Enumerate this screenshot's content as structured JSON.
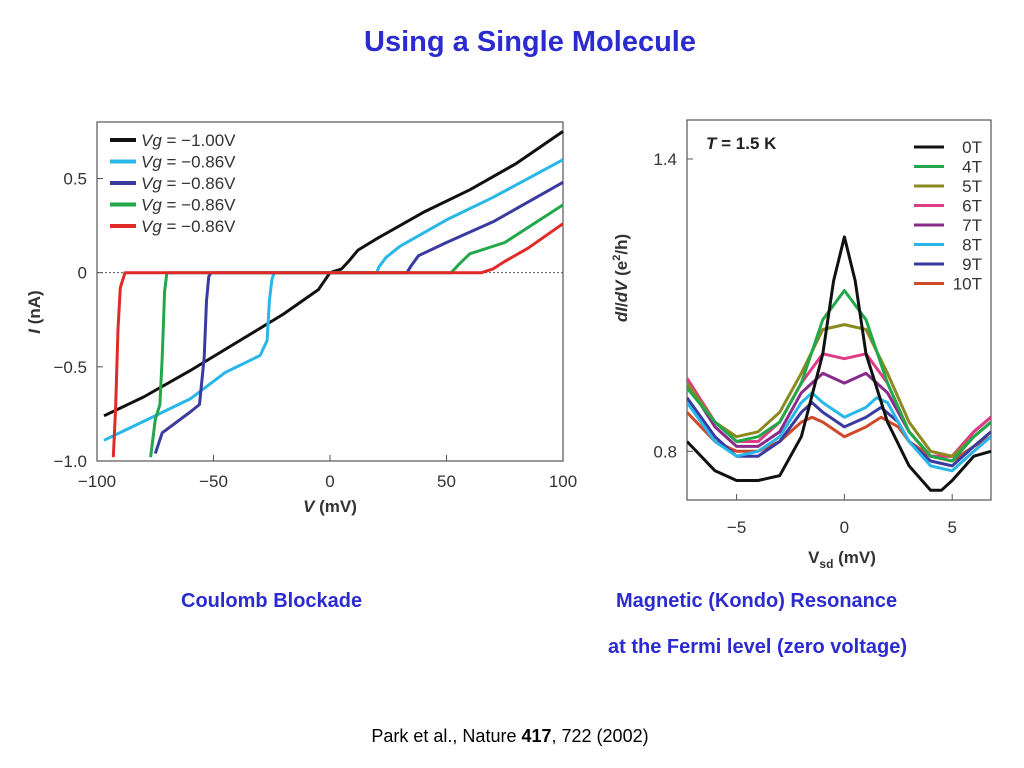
{
  "slide": {
    "title": "Using a Single Molecule",
    "caption_left": "Coulomb Blockade",
    "caption_right_line1": "Magnetic (Kondo) Resonance",
    "caption_right_line2": "at the Fermi level (zero voltage)",
    "citation_pre": "Park et al., Nature ",
    "citation_bold": "417",
    "citation_post": ", 722 (2002)"
  },
  "chart_data": [
    {
      "type": "line",
      "xlabel": "V (mV)",
      "ylabel": "I (nA)",
      "xlim": [
        -100,
        100
      ],
      "ylim": [
        -1.0,
        0.8
      ],
      "xticks": [
        -100,
        -50,
        0,
        50,
        100
      ],
      "yticks": [
        -1.0,
        -0.5,
        0,
        0.5
      ],
      "xtick_labels": [
        "−100",
        "−50",
        "0",
        "50",
        "100"
      ],
      "ytick_labels": [
        "−1.0",
        "−0.5",
        "0",
        "0.5"
      ],
      "zero_line": "dotted",
      "legend_position": "top-left",
      "series": [
        {
          "name": "Vg = −1.00V",
          "color": "#111111",
          "points": [
            [
              -97,
              -0.76
            ],
            [
              -80,
              -0.66
            ],
            [
              -60,
              -0.52
            ],
            [
              -40,
              -0.37
            ],
            [
              -20,
              -0.22
            ],
            [
              -5,
              -0.09
            ],
            [
              0,
              0.0
            ],
            [
              5,
              0.02
            ],
            [
              8,
              0.06
            ],
            [
              12,
              0.12
            ],
            [
              20,
              0.18
            ],
            [
              40,
              0.32
            ],
            [
              60,
              0.44
            ],
            [
              80,
              0.58
            ],
            [
              100,
              0.75
            ]
          ]
        },
        {
          "name": "Vg = −0.86V",
          "color": "#29b6e8",
          "points": [
            [
              -97,
              -0.89
            ],
            [
              -80,
              -0.79
            ],
            [
              -60,
              -0.67
            ],
            [
              -45,
              -0.53
            ],
            [
              -30,
              -0.44
            ],
            [
              -27,
              -0.36
            ],
            [
              -26,
              -0.15
            ],
            [
              -25,
              -0.04
            ],
            [
              -24,
              0.0
            ],
            [
              20,
              0.0
            ],
            [
              21,
              0.03
            ],
            [
              24,
              0.08
            ],
            [
              30,
              0.14
            ],
            [
              50,
              0.28
            ],
            [
              70,
              0.4
            ],
            [
              100,
              0.6
            ]
          ]
        },
        {
          "name": "Vg = −0.86V",
          "color": "#3a3aa0",
          "points": [
            [
              -75,
              -0.96
            ],
            [
              -72,
              -0.85
            ],
            [
              -60,
              -0.74
            ],
            [
              -56,
              -0.7
            ],
            [
              -54,
              -0.45
            ],
            [
              -53,
              -0.15
            ],
            [
              -52,
              -0.02
            ],
            [
              -51,
              0.0
            ],
            [
              33,
              0.0
            ],
            [
              35,
              0.04
            ],
            [
              38,
              0.09
            ],
            [
              50,
              0.16
            ],
            [
              70,
              0.27
            ],
            [
              100,
              0.48
            ]
          ]
        },
        {
          "name": "Vg = −0.86V",
          "color": "#22a84a",
          "points": [
            [
              -77,
              -0.98
            ],
            [
              -75,
              -0.78
            ],
            [
              -73,
              -0.7
            ],
            [
              -72,
              -0.45
            ],
            [
              -71,
              -0.1
            ],
            [
              -70,
              0.0
            ],
            [
              52,
              0.0
            ],
            [
              55,
              0.04
            ],
            [
              60,
              0.1
            ],
            [
              75,
              0.16
            ],
            [
              100,
              0.36
            ]
          ]
        },
        {
          "name": "Vg = −0.86V",
          "color": "#e02a28",
          "points": [
            [
              -93,
              -0.98
            ],
            [
              -92,
              -0.72
            ],
            [
              -91,
              -0.3
            ],
            [
              -90,
              -0.08
            ],
            [
              -88,
              0.0
            ],
            [
              65,
              0.0
            ],
            [
              70,
              0.02
            ],
            [
              75,
              0.06
            ],
            [
              85,
              0.13
            ],
            [
              100,
              0.26
            ]
          ]
        }
      ]
    },
    {
      "type": "line",
      "annotation": "T = 1.5 K",
      "xlabel": "Vsd (mV)",
      "ylabel": "dI/dV (e²/h)",
      "xlim": [
        -7.3,
        6.8
      ],
      "ylim": [
        0.7,
        1.48
      ],
      "xticks": [
        -5,
        0,
        5
      ],
      "yticks": [
        0.8,
        1.4
      ],
      "xtick_labels": [
        "−5",
        "0",
        "5"
      ],
      "ytick_labels": [
        "0.8",
        "1.4"
      ],
      "legend_position": "top-right",
      "series": [
        {
          "name": "0T",
          "color": "#111111",
          "points": [
            [
              -7.3,
              0.82
            ],
            [
              -6,
              0.76
            ],
            [
              -5,
              0.74
            ],
            [
              -4,
              0.74
            ],
            [
              -3,
              0.75
            ],
            [
              -2,
              0.83
            ],
            [
              -1,
              1.0
            ],
            [
              -0.5,
              1.15
            ],
            [
              0,
              1.24
            ],
            [
              0.5,
              1.15
            ],
            [
              1,
              1.0
            ],
            [
              2,
              0.86
            ],
            [
              3,
              0.77
            ],
            [
              4,
              0.72
            ],
            [
              4.5,
              0.72
            ],
            [
              5,
              0.74
            ],
            [
              6,
              0.79
            ],
            [
              6.8,
              0.8
            ]
          ]
        },
        {
          "name": "4T",
          "color": "#22a84a",
          "points": [
            [
              -7.3,
              0.93
            ],
            [
              -6,
              0.86
            ],
            [
              -5,
              0.82
            ],
            [
              -4,
              0.83
            ],
            [
              -3,
              0.86
            ],
            [
              -2,
              0.94
            ],
            [
              -1,
              1.07
            ],
            [
              0,
              1.13
            ],
            [
              1,
              1.07
            ],
            [
              2,
              0.94
            ],
            [
              3,
              0.84
            ],
            [
              4,
              0.79
            ],
            [
              5,
              0.78
            ],
            [
              6,
              0.83
            ],
            [
              6.8,
              0.86
            ]
          ]
        },
        {
          "name": "5T",
          "color": "#8a8a20",
          "points": [
            [
              -7.3,
              0.94
            ],
            [
              -6,
              0.86
            ],
            [
              -5,
              0.83
            ],
            [
              -4,
              0.84
            ],
            [
              -3,
              0.88
            ],
            [
              -2,
              0.96
            ],
            [
              -1,
              1.05
            ],
            [
              0,
              1.06
            ],
            [
              1,
              1.05
            ],
            [
              2,
              0.96
            ],
            [
              3,
              0.86
            ],
            [
              4,
              0.8
            ],
            [
              5,
              0.79
            ],
            [
              6,
              0.83
            ],
            [
              6.8,
              0.86
            ]
          ]
        },
        {
          "name": "6T",
          "color": "#e03b86",
          "points": [
            [
              -7.3,
              0.95
            ],
            [
              -6,
              0.86
            ],
            [
              -5,
              0.82
            ],
            [
              -4,
              0.82
            ],
            [
              -3,
              0.86
            ],
            [
              -2,
              0.94
            ],
            [
              -1,
              1.0
            ],
            [
              0,
              0.99
            ],
            [
              1,
              1.0
            ],
            [
              2,
              0.94
            ],
            [
              3,
              0.84
            ],
            [
              4,
              0.79
            ],
            [
              5,
              0.79
            ],
            [
              6,
              0.84
            ],
            [
              6.8,
              0.87
            ]
          ]
        },
        {
          "name": "7T",
          "color": "#8a2a8a",
          "points": [
            [
              -7.3,
              0.94
            ],
            [
              -6,
              0.85
            ],
            [
              -5,
              0.81
            ],
            [
              -4,
              0.81
            ],
            [
              -3,
              0.84
            ],
            [
              -2,
              0.92
            ],
            [
              -1,
              0.96
            ],
            [
              0,
              0.94
            ],
            [
              1,
              0.96
            ],
            [
              2,
              0.92
            ],
            [
              3,
              0.84
            ],
            [
              4,
              0.79
            ],
            [
              5,
              0.79
            ],
            [
              6,
              0.84
            ],
            [
              6.8,
              0.87
            ]
          ]
        },
        {
          "name": "8T",
          "color": "#29b6e8",
          "points": [
            [
              -7.3,
              0.9
            ],
            [
              -6,
              0.82
            ],
            [
              -5,
              0.79
            ],
            [
              -4,
              0.8
            ],
            [
              -3,
              0.83
            ],
            [
              -2,
              0.9
            ],
            [
              -1.5,
              0.92
            ],
            [
              -1,
              0.9
            ],
            [
              0,
              0.87
            ],
            [
              1,
              0.89
            ],
            [
              1.5,
              0.91
            ],
            [
              2,
              0.9
            ],
            [
              3,
              0.82
            ],
            [
              4,
              0.77
            ],
            [
              5,
              0.76
            ],
            [
              6,
              0.8
            ],
            [
              6.8,
              0.83
            ]
          ]
        },
        {
          "name": "9T",
          "color": "#3a3aa0",
          "points": [
            [
              -7.3,
              0.91
            ],
            [
              -6,
              0.83
            ],
            [
              -5,
              0.79
            ],
            [
              -4,
              0.79
            ],
            [
              -3,
              0.82
            ],
            [
              -2,
              0.88
            ],
            [
              -1.5,
              0.9
            ],
            [
              -1,
              0.88
            ],
            [
              0,
              0.85
            ],
            [
              1,
              0.87
            ],
            [
              1.7,
              0.89
            ],
            [
              2.5,
              0.86
            ],
            [
              3,
              0.82
            ],
            [
              4,
              0.78
            ],
            [
              5,
              0.77
            ],
            [
              6,
              0.81
            ],
            [
              6.8,
              0.84
            ]
          ]
        },
        {
          "name": "10T",
          "color": "#d04a2a",
          "points": [
            [
              -7.3,
              0.88
            ],
            [
              -6,
              0.82
            ],
            [
              -5,
              0.8
            ],
            [
              -4,
              0.8
            ],
            [
              -3,
              0.82
            ],
            [
              -2,
              0.86
            ],
            [
              -1.5,
              0.87
            ],
            [
              -1,
              0.86
            ],
            [
              0,
              0.83
            ],
            [
              1,
              0.85
            ],
            [
              1.7,
              0.87
            ],
            [
              2.5,
              0.85
            ],
            [
              3,
              0.82
            ],
            [
              4,
              0.79
            ],
            [
              5,
              0.78
            ],
            [
              6,
              0.81
            ],
            [
              6.8,
              0.83
            ]
          ]
        }
      ]
    }
  ]
}
